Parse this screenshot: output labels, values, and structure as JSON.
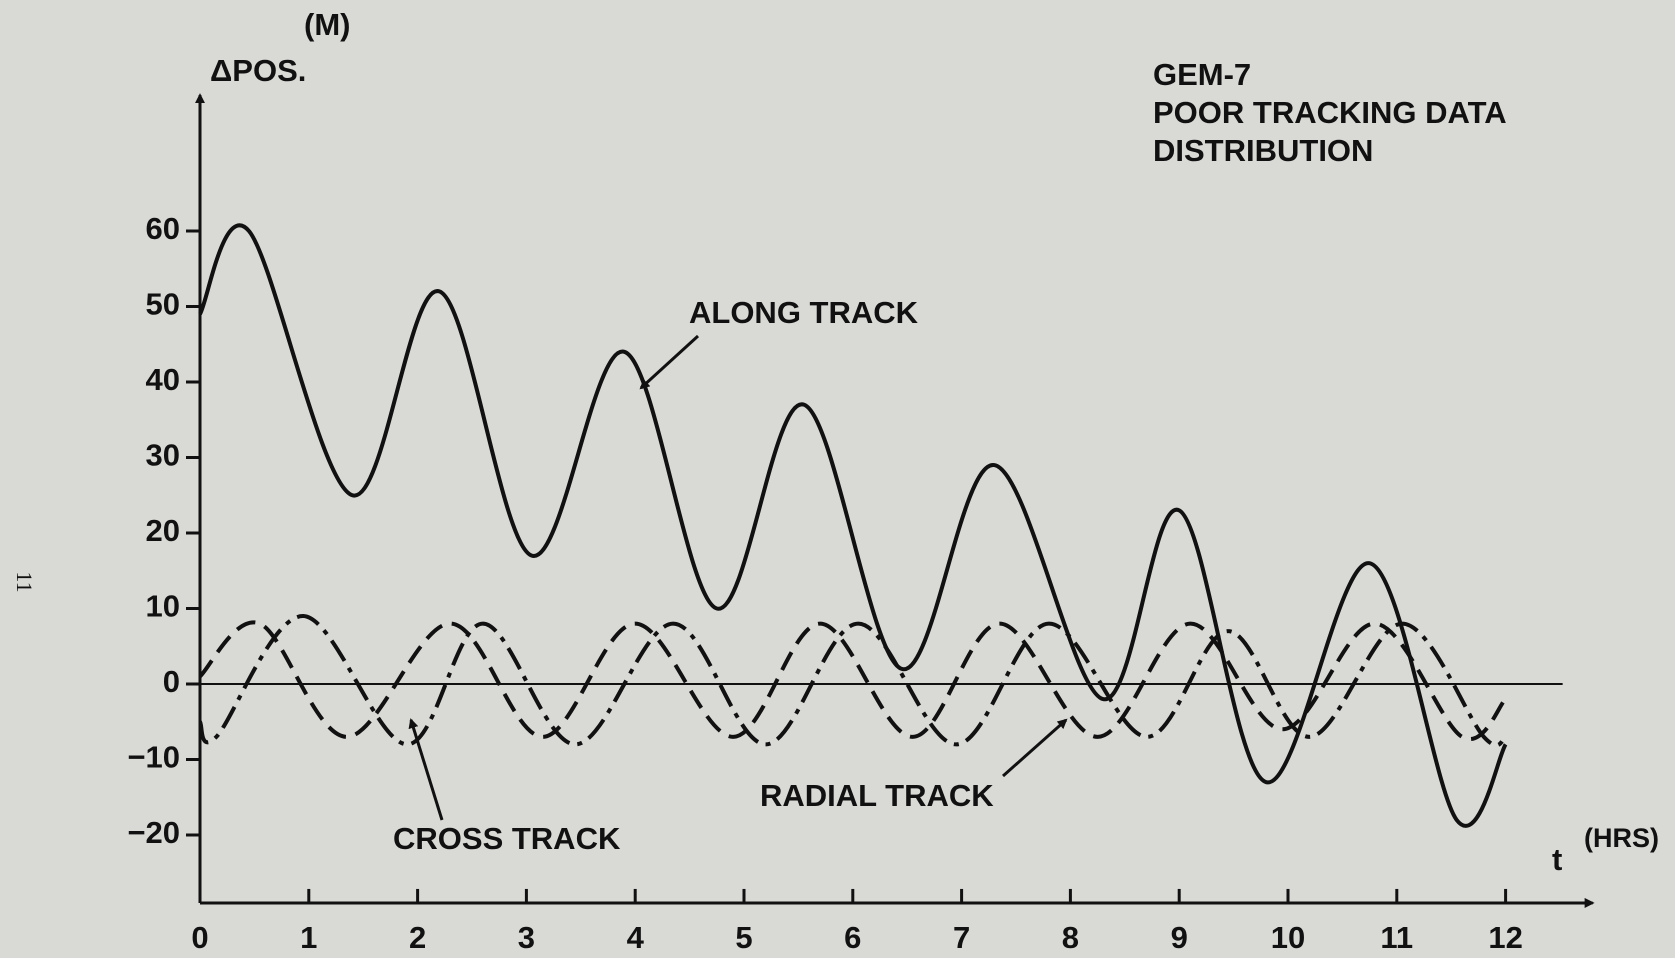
{
  "chart_data": {
    "type": "line",
    "title": [
      "GEM-7",
      "POOR TRACKING DATA",
      "DISTRIBUTION"
    ],
    "y_label": "ΔPOS.",
    "y_unit": "(M)",
    "x_label": "t",
    "x_unit": "(HRS)",
    "page_number": "11",
    "annotations": [
      "ALONG TRACK",
      "CROSS TRACK",
      "RADIAL TRACK"
    ],
    "xlim": [
      0,
      12.8
    ],
    "ylim": [
      -29,
      78
    ],
    "xticks": [
      0,
      1,
      2,
      3,
      4,
      5,
      6,
      7,
      8,
      9,
      10,
      11,
      12
    ],
    "yticks": [
      {
        "value": -20,
        "label": "−20"
      },
      {
        "value": -10,
        "label": "−10"
      },
      0,
      10,
      20,
      30,
      40,
      50,
      60
    ],
    "series": [
      {
        "name": "ALONG TRACK",
        "color": "#111111",
        "line_style": "solid",
        "x": [
          0,
          0.45,
          1.4,
          2.2,
          3.05,
          3.9,
          4.75,
          5.55,
          6.45,
          7.3,
          8.3,
          9.0,
          9.8,
          10.75,
          11.55,
          12
        ],
        "values": [
          49,
          60,
          25,
          52,
          17,
          44,
          10,
          37,
          2,
          29,
          -2,
          23,
          -13,
          16,
          -18,
          -8
        ]
      },
      {
        "name": "CROSS TRACK",
        "color": "#111111",
        "line_style": "dashdot",
        "x": [
          0,
          0.15,
          0.95,
          1.9,
          2.6,
          3.45,
          4.35,
          5.2,
          6.05,
          6.95,
          7.8,
          8.7,
          9.45,
          10.2,
          11.05,
          11.8,
          12
        ],
        "values": [
          -5,
          -7,
          9,
          -8,
          8,
          -8,
          8,
          -8,
          8,
          -8,
          8,
          -7,
          7,
          -7,
          8,
          -7,
          -7
        ]
      },
      {
        "name": "RADIAL TRACK",
        "color": "#111111",
        "line_style": "dashed",
        "x": [
          0,
          0.55,
          1.35,
          2.3,
          3.15,
          4.0,
          4.9,
          5.7,
          6.55,
          7.35,
          8.25,
          9.1,
          9.95,
          10.8,
          11.6,
          12
        ],
        "values": [
          1,
          8,
          -7,
          8,
          -7,
          8,
          -7,
          8,
          -7,
          8,
          -7,
          8,
          -6,
          8,
          -7,
          -2
        ]
      }
    ]
  }
}
